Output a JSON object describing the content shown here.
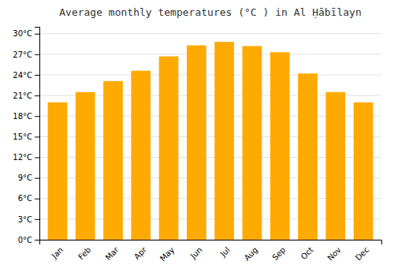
{
  "chart_data": {
    "type": "bar",
    "title": "Average monthly temperatures (°C ) in Al Ḥābīlayn",
    "categories": [
      "Jan",
      "Feb",
      "Mar",
      "Apr",
      "May",
      "Jun",
      "Jul",
      "Aug",
      "Sep",
      "Oct",
      "Nov",
      "Dec"
    ],
    "values": [
      20.0,
      21.5,
      23.1,
      24.6,
      26.7,
      28.3,
      28.8,
      28.2,
      27.3,
      24.2,
      21.5,
      20.0
    ],
    "color": "#FFAA00",
    "ylim": [
      0,
      31
    ],
    "yticks": [
      {
        "value": 0,
        "label": "0°C"
      },
      {
        "value": 3,
        "label": "3°C"
      },
      {
        "value": 6,
        "label": "6°C"
      },
      {
        "value": 9,
        "label": "9°C"
      },
      {
        "value": 12,
        "label": "12°C"
      },
      {
        "value": 15,
        "label": "15°C"
      },
      {
        "value": 18,
        "label": "18°C"
      },
      {
        "value": 21,
        "label": "21°C"
      },
      {
        "value": 24,
        "label": "24°C"
      },
      {
        "value": 27,
        "label": "27°C"
      },
      {
        "value": 30,
        "label": "30°C"
      }
    ],
    "grid": true
  }
}
